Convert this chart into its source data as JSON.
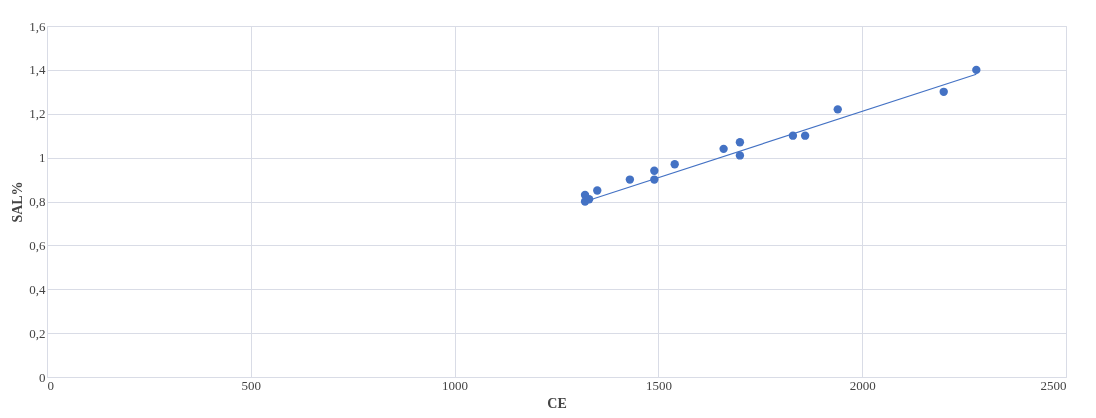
{
  "chart_data": {
    "type": "scatter",
    "xlabel": "CE",
    "ylabel": "SAL%",
    "xlim": [
      0,
      2500
    ],
    "xticks": [
      0,
      500,
      1000,
      1500,
      2000,
      2500
    ],
    "ylim": [
      0,
      1.6
    ],
    "yticks": [
      {
        "value": 0,
        "label": "0"
      },
      {
        "value": 0.2,
        "label": "0,2"
      },
      {
        "value": 0.4,
        "label": "0,4"
      },
      {
        "value": 0.6,
        "label": "0,6"
      },
      {
        "value": 0.8,
        "label": "0,8"
      },
      {
        "value": 1,
        "label": "1"
      },
      {
        "value": 1.2,
        "label": "1,2"
      },
      {
        "value": 1.4,
        "label": "1,4"
      },
      {
        "value": 1.6,
        "label": "1,6"
      }
    ],
    "grid": true,
    "series": [
      {
        "marker": "circle",
        "color": "#4472c4",
        "x": [
          1320,
          1320,
          1330,
          1350,
          1430,
          1490,
          1490,
          1540,
          1660,
          1700,
          1700,
          1830,
          1860,
          1940,
          2200,
          2280
        ],
        "values": [
          0.83,
          0.8,
          0.81,
          0.85,
          0.9,
          0.9,
          0.94,
          0.97,
          1.04,
          1.01,
          1.07,
          1.1,
          1.1,
          1.22,
          1.3,
          1.4
        ]
      },
      {
        "type": "line",
        "color": "#4472c4",
        "x": [
          1320,
          2280
        ],
        "values": [
          0.8,
          1.38
        ]
      }
    ]
  }
}
